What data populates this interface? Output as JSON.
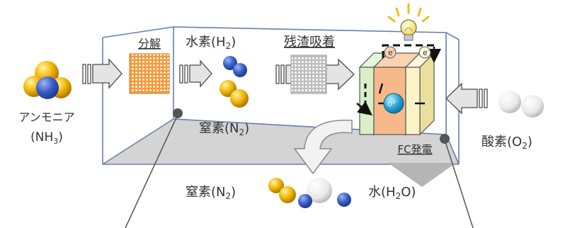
{
  "labels": {
    "ammonia_line1": "アンモニア",
    "ammonia_line2_pre": "(NH",
    "ammonia_line2_sub": "3",
    "ammonia_line2_post": ")",
    "decomposition": "分解",
    "hydrogen_pre": "水素(H",
    "hydrogen_sub": "2",
    "hydrogen_post": ")",
    "residue_adsorption": "残渣吸着",
    "nitrogen_inside_pre": "窒素(N",
    "nitrogen_inside_sub": "2",
    "nitrogen_inside_post": ")",
    "fc_power": "FC発電",
    "oxygen_pre": "酸素(O",
    "oxygen_sub": "2",
    "oxygen_post": ")",
    "nitrogen_out_pre": "窒素(N",
    "nitrogen_out_sub": "2",
    "nitrogen_out_post": ")",
    "water_pre": "水(H",
    "water_sub": "2",
    "water_post": "O)",
    "electron": "e",
    "electron_sup": "-",
    "oxide_ion": "O",
    "oxide_ion_sup": "2-"
  },
  "colors": {
    "nitrogen_atom": "#3a5fc8",
    "hydrogen_atom": "#f2b705",
    "decomposition_catalyst": "#f39a3a",
    "adsorbent": "#bdbdbd",
    "anode": "#d8efc8",
    "electrolyte": "#f7b98a",
    "cathode": "#fbf3c8",
    "floor": "#d4d4d4",
    "oxide_ion": "#2aa6d9"
  }
}
